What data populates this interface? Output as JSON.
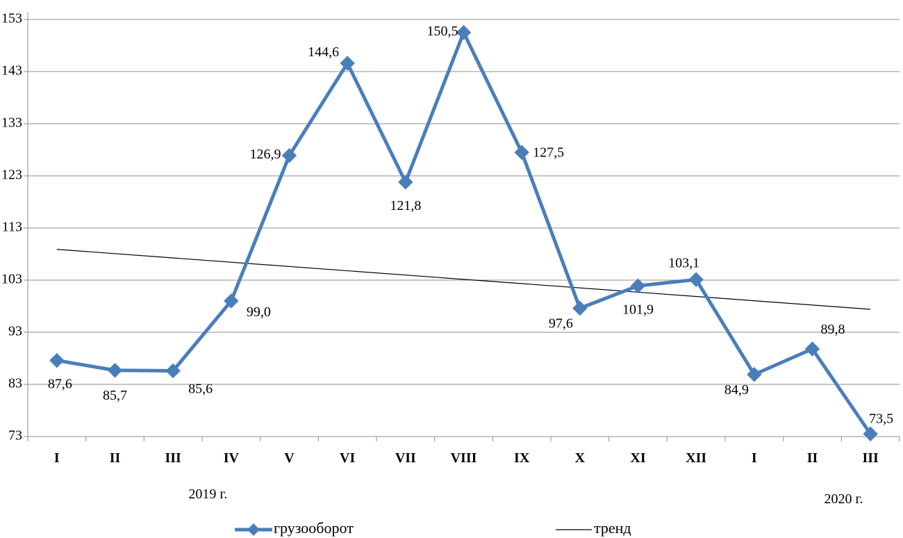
{
  "chart_data": {
    "type": "line",
    "title": "",
    "xlabel": "",
    "ylabel": "",
    "categories": [
      "I",
      "II",
      "III",
      "IV",
      "V",
      "VI",
      "VII",
      "VIII",
      "IX",
      "X",
      "XI",
      "XII",
      "I",
      "II",
      "III"
    ],
    "category_groups": [
      {
        "label": "2019 г.",
        "start": 0,
        "end": 11
      },
      {
        "label": "2020 г.",
        "start": 12,
        "end": 14
      }
    ],
    "ylim": [
      73,
      153
    ],
    "yticks": [
      73,
      83,
      93,
      103,
      113,
      123,
      133,
      143,
      153
    ],
    "grid": true,
    "legend_position": "bottom",
    "series": [
      {
        "name": "грузооборот",
        "color": "#4a7ebb",
        "marker": "diamond",
        "values": [
          87.6,
          85.7,
          85.6,
          99.0,
          126.9,
          144.6,
          121.8,
          150.5,
          127.5,
          97.6,
          101.9,
          103.1,
          84.9,
          89.8,
          73.5
        ],
        "labels": [
          "87,6",
          "85,7",
          "85,6",
          "99,0",
          "126,9",
          "144,6",
          "121,8",
          "150,5",
          "127,5",
          "97,6",
          "101,9",
          "103,1",
          "84,9",
          "89,8",
          "73,5"
        ]
      },
      {
        "name": "тренд",
        "color": "#000000",
        "type": "linear-trend",
        "start": 108.9,
        "end": 97.4
      }
    ]
  }
}
